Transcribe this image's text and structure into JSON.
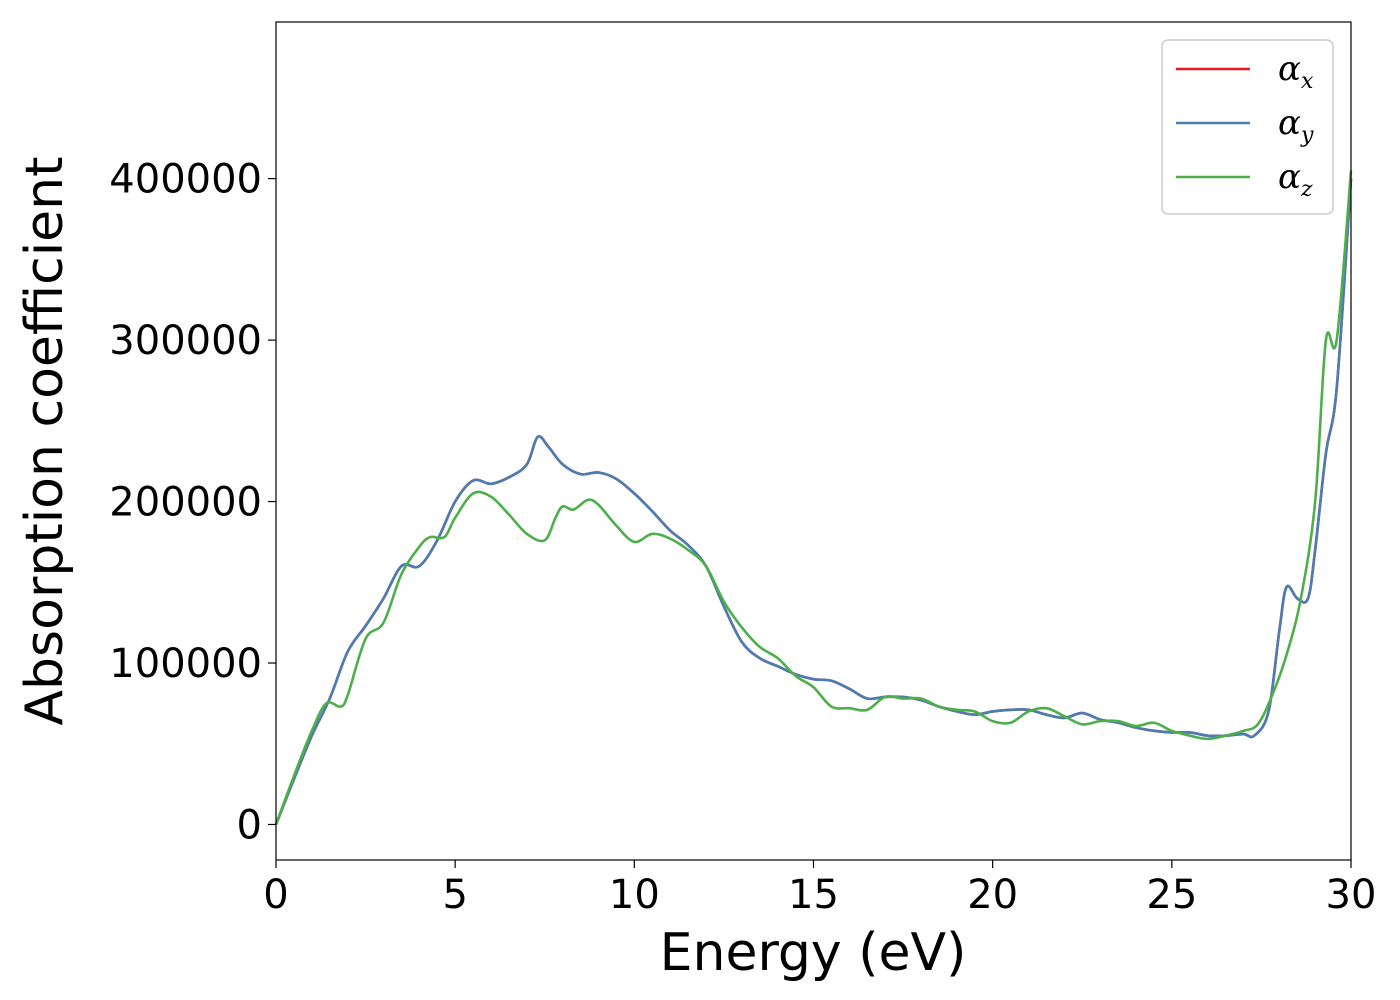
{
  "chart_data": {
    "type": "line",
    "title": "",
    "xlabel": "Energy (eV)",
    "ylabel": "Absorption coefficient",
    "xlim": [
      0,
      30
    ],
    "ylim": [
      -22000,
      497000
    ],
    "xticks": [
      0,
      5,
      10,
      15,
      20,
      25,
      30
    ],
    "yticks": [
      0,
      100000,
      200000,
      300000,
      400000
    ],
    "grid": false,
    "legend_position": "top-right",
    "series": [
      {
        "name": "α_x",
        "symbol": "α",
        "subscript": "x",
        "color": "#e41a1c",
        "x": [
          0,
          0.5,
          1,
          1.5,
          2,
          2.5,
          3,
          3.5,
          4,
          4.5,
          5,
          5.5,
          6,
          6.5,
          7,
          7.3,
          7.6,
          8,
          8.5,
          9,
          9.5,
          10,
          10.5,
          11,
          11.5,
          12,
          12.5,
          13,
          13.5,
          14,
          14.5,
          15,
          15.5,
          16,
          16.5,
          17,
          17.5,
          18,
          18.5,
          19,
          19.5,
          20,
          20.5,
          21,
          21.5,
          22,
          22.5,
          23,
          23.5,
          24,
          24.5,
          25,
          25.5,
          26,
          26.5,
          27,
          27.3,
          27.7,
          28,
          28.2,
          28.5,
          28.8,
          29,
          29.3,
          29.6,
          30
        ],
        "y": [
          0,
          28000,
          55000,
          78000,
          107000,
          123000,
          140000,
          160000,
          160000,
          176000,
          200000,
          213000,
          211000,
          215000,
          223000,
          240000,
          234000,
          223000,
          217000,
          218000,
          214000,
          205000,
          194000,
          182000,
          173000,
          160000,
          135000,
          113000,
          103000,
          98000,
          93000,
          90000,
          89000,
          84000,
          78000,
          79000,
          79000,
          77000,
          73000,
          70000,
          68000,
          70000,
          71000,
          71000,
          68000,
          66000,
          69000,
          65000,
          63000,
          60000,
          58000,
          57000,
          57000,
          55000,
          55000,
          56000,
          55000,
          70000,
          120000,
          147000,
          140000,
          140000,
          170000,
          230000,
          270000,
          400000
        ]
      },
      {
        "name": "α_y",
        "symbol": "α",
        "subscript": "y",
        "color": "#4a7db3",
        "x": [
          0,
          0.5,
          1,
          1.5,
          2,
          2.5,
          3,
          3.5,
          4,
          4.5,
          5,
          5.5,
          6,
          6.5,
          7,
          7.3,
          7.6,
          8,
          8.5,
          9,
          9.5,
          10,
          10.5,
          11,
          11.5,
          12,
          12.5,
          13,
          13.5,
          14,
          14.5,
          15,
          15.5,
          16,
          16.5,
          17,
          17.5,
          18,
          18.5,
          19,
          19.5,
          20,
          20.5,
          21,
          21.5,
          22,
          22.5,
          23,
          23.5,
          24,
          24.5,
          25,
          25.5,
          26,
          26.5,
          27,
          27.3,
          27.7,
          28,
          28.2,
          28.5,
          28.8,
          29,
          29.3,
          29.6,
          30
        ],
        "y": [
          0,
          28000,
          55000,
          78000,
          107000,
          123000,
          140000,
          160000,
          160000,
          176000,
          200000,
          213000,
          211000,
          215000,
          223000,
          240000,
          234000,
          223000,
          217000,
          218000,
          214000,
          205000,
          194000,
          182000,
          173000,
          160000,
          135000,
          113000,
          103000,
          98000,
          93000,
          90000,
          89000,
          84000,
          78000,
          79000,
          79000,
          77000,
          73000,
          70000,
          68000,
          70000,
          71000,
          71000,
          68000,
          66000,
          69000,
          65000,
          63000,
          60000,
          58000,
          57000,
          57000,
          55000,
          55000,
          56000,
          55000,
          70000,
          120000,
          147000,
          140000,
          140000,
          170000,
          230000,
          270000,
          400000
        ]
      },
      {
        "name": "α_z",
        "symbol": "α",
        "subscript": "z",
        "color": "#4daf4a",
        "x": [
          0,
          0.5,
          1,
          1.4,
          1.8,
          2,
          2.5,
          3,
          3.5,
          4,
          4.3,
          4.7,
          5,
          5.5,
          6,
          6.5,
          7,
          7.5,
          7.8,
          8,
          8.3,
          8.7,
          9,
          9.5,
          10,
          10.5,
          11,
          11.5,
          12,
          12.5,
          13,
          13.5,
          14,
          14.5,
          15,
          15.5,
          16,
          16.5,
          17,
          17.5,
          18,
          18.5,
          19,
          19.5,
          20,
          20.5,
          21,
          21.5,
          22,
          22.5,
          23,
          23.5,
          24,
          24.5,
          25,
          25.5,
          26,
          26.5,
          27,
          27.4,
          27.8,
          28.2,
          28.6,
          29,
          29.3,
          29.6,
          30
        ],
        "y": [
          0,
          30000,
          58000,
          75000,
          73000,
          80000,
          115000,
          125000,
          155000,
          172000,
          178000,
          178000,
          190000,
          205000,
          203000,
          192000,
          180000,
          176000,
          190000,
          197000,
          195000,
          201000,
          198000,
          185000,
          175000,
          180000,
          177000,
          170000,
          160000,
          138000,
          122000,
          110000,
          103000,
          92000,
          85000,
          73000,
          72000,
          71000,
          79000,
          78000,
          78000,
          73000,
          71000,
          70000,
          64000,
          63000,
          70000,
          72000,
          67000,
          62000,
          64000,
          64000,
          61000,
          63000,
          58000,
          55000,
          53000,
          55000,
          58000,
          62000,
          80000,
          105000,
          140000,
          200000,
          300000,
          300000,
          405000
        ]
      }
    ]
  }
}
